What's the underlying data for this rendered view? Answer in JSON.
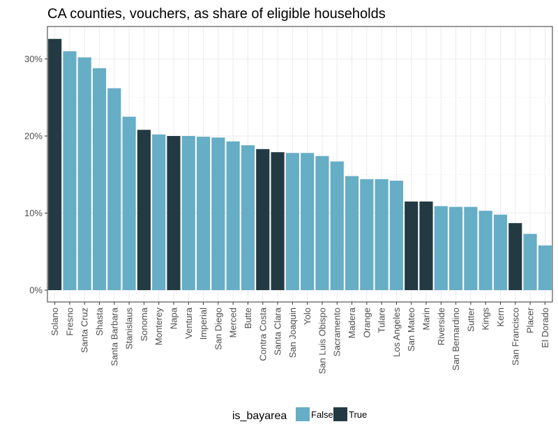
{
  "chart_data": {
    "type": "bar",
    "title": "CA counties, vouchers, as share of eligible households",
    "xlabel": "",
    "ylabel": "",
    "ylim": [
      0,
      34
    ],
    "yticks": [
      0,
      10,
      20,
      30
    ],
    "ytick_labels": [
      "0%",
      "10%",
      "20%",
      "30%"
    ],
    "grid": true,
    "legend": {
      "title": "is_bayarea",
      "position": "bottom",
      "entries": [
        {
          "label": "False",
          "color": "#66adc6"
        },
        {
          "label": "True",
          "color": "#233a43"
        }
      ]
    },
    "categories": [
      "Solano",
      "Fresno",
      "Santa Cruz",
      "Shasta",
      "Santa Barbara",
      "Stanislaus",
      "Sonoma",
      "Monterey",
      "Napa",
      "Ventura",
      "Imperial",
      "San Diego",
      "Merced",
      "Butte",
      "Contra Costa",
      "Santa Clara",
      "San Joaquin",
      "Yolo",
      "San Luis Obispo",
      "Sacramento",
      "Madera",
      "Orange",
      "Tulare",
      "Los Angeles",
      "San Mateo",
      "Marin",
      "Riverside",
      "San Bernardino",
      "Sutter",
      "Kings",
      "Kern",
      "San Francisco",
      "Placer",
      "El Dorado"
    ],
    "values": [
      32.6,
      31.0,
      30.2,
      28.8,
      26.2,
      22.5,
      20.8,
      20.2,
      20.0,
      20.0,
      19.9,
      19.8,
      19.3,
      18.8,
      18.3,
      17.9,
      17.8,
      17.8,
      17.4,
      16.7,
      14.8,
      14.4,
      14.4,
      14.2,
      11.5,
      11.5,
      10.9,
      10.8,
      10.8,
      10.3,
      9.8,
      8.7,
      7.3,
      5.8
    ],
    "is_bayarea": [
      true,
      false,
      false,
      false,
      false,
      false,
      true,
      false,
      true,
      false,
      false,
      false,
      false,
      false,
      true,
      true,
      false,
      false,
      false,
      false,
      false,
      false,
      false,
      false,
      true,
      true,
      false,
      false,
      false,
      false,
      false,
      true,
      false,
      false
    ]
  }
}
